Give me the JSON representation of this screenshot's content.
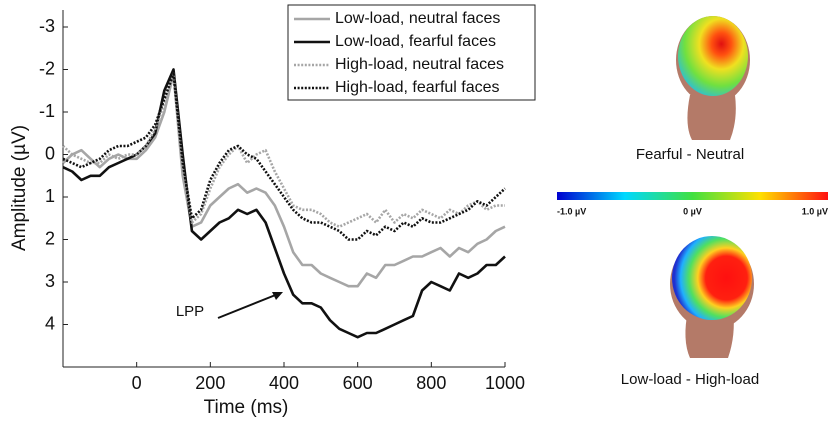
{
  "chart_data": {
    "type": "line",
    "x_label": "Time (ms)",
    "y_label": "Amplitude (µV)",
    "xlim": [
      -200,
      1000
    ],
    "xticks": [
      0,
      200,
      400,
      600,
      800,
      1000
    ],
    "ylim": [
      -3.4,
      5
    ],
    "yticks": [
      -3,
      -2,
      -1,
      0,
      1,
      2,
      3,
      4
    ],
    "y_inverted": true,
    "x": [
      -200,
      -175,
      -150,
      -125,
      -100,
      -75,
      -50,
      -25,
      0,
      25,
      50,
      75,
      100,
      125,
      150,
      175,
      200,
      225,
      250,
      275,
      300,
      325,
      350,
      375,
      400,
      425,
      450,
      475,
      500,
      525,
      550,
      575,
      600,
      625,
      650,
      675,
      700,
      725,
      750,
      775,
      800,
      825,
      850,
      875,
      900,
      925,
      950,
      975,
      1000
    ],
    "series": [
      {
        "name": "Low-load, neutral faces",
        "color": "#a6a6a6",
        "dash": "solid",
        "values": [
          0.2,
          0.0,
          -0.1,
          0.1,
          0.3,
          0.1,
          0.0,
          0.1,
          0.1,
          -0.1,
          -0.4,
          -1.0,
          -1.9,
          0.5,
          1.7,
          1.6,
          1.2,
          1.0,
          0.8,
          0.7,
          0.9,
          0.8,
          0.9,
          1.2,
          1.7,
          2.3,
          2.6,
          2.6,
          2.8,
          2.9,
          3.0,
          3.1,
          3.1,
          2.8,
          2.9,
          2.6,
          2.6,
          2.5,
          2.4,
          2.4,
          2.3,
          2.2,
          2.4,
          2.2,
          2.3,
          2.1,
          2.0,
          1.8,
          1.7
        ]
      },
      {
        "name": "Low-load, fearful faces",
        "color": "#111111",
        "dash": "solid",
        "values": [
          0.3,
          0.4,
          0.6,
          0.5,
          0.5,
          0.3,
          0.2,
          0.1,
          0.0,
          -0.2,
          -0.5,
          -1.5,
          -2.0,
          0.0,
          1.8,
          2.0,
          1.8,
          1.6,
          1.5,
          1.3,
          1.4,
          1.3,
          1.6,
          2.2,
          2.8,
          3.3,
          3.5,
          3.5,
          3.6,
          3.9,
          4.1,
          4.2,
          4.3,
          4.2,
          4.2,
          4.1,
          4.0,
          3.9,
          3.8,
          3.2,
          3.0,
          3.1,
          3.2,
          2.8,
          2.9,
          2.8,
          2.6,
          2.6,
          2.4
        ]
      },
      {
        "name": "High-load, neutral faces",
        "color": "#a6a6a6",
        "dash": "dotted",
        "values": [
          -0.2,
          0.0,
          0.1,
          0.2,
          0.2,
          0.0,
          0.1,
          0.0,
          0.0,
          -0.2,
          -0.6,
          -1.2,
          -1.9,
          0.3,
          1.6,
          1.4,
          0.8,
          0.3,
          0.0,
          -0.2,
          0.2,
          0.0,
          -0.1,
          0.4,
          0.8,
          1.2,
          1.3,
          1.3,
          1.4,
          1.6,
          1.7,
          1.6,
          1.5,
          1.4,
          1.6,
          1.3,
          1.6,
          1.4,
          1.5,
          1.3,
          1.4,
          1.5,
          1.3,
          1.4,
          1.2,
          1.1,
          1.3,
          1.2,
          1.2
        ]
      },
      {
        "name": "High-load, fearful faces",
        "color": "#111111",
        "dash": "dotted",
        "values": [
          0.1,
          0.2,
          0.3,
          0.2,
          0.1,
          -0.1,
          -0.2,
          -0.2,
          -0.3,
          -0.4,
          -0.7,
          -1.3,
          -1.9,
          0.2,
          1.5,
          1.3,
          0.6,
          0.2,
          -0.1,
          -0.2,
          0.0,
          0.1,
          0.4,
          0.7,
          1.0,
          1.3,
          1.5,
          1.6,
          1.6,
          1.7,
          1.8,
          2.0,
          2.0,
          1.8,
          1.9,
          1.7,
          1.8,
          1.6,
          1.7,
          1.5,
          1.6,
          1.6,
          1.5,
          1.4,
          1.3,
          1.1,
          1.2,
          1.0,
          0.8
        ]
      }
    ],
    "annotation": "LPP",
    "legend": "top"
  },
  "colorbar": {
    "range": [
      -1,
      1
    ],
    "ticks": [
      {
        "value": -1,
        "label": "-1.0 µV"
      },
      {
        "value": 0,
        "label": "0 µV"
      },
      {
        "value": 1,
        "label": "1.0 µV"
      }
    ]
  },
  "topomaps": [
    {
      "caption": "Fearful - Neutral"
    },
    {
      "caption": "Low-load - High-load"
    }
  ]
}
